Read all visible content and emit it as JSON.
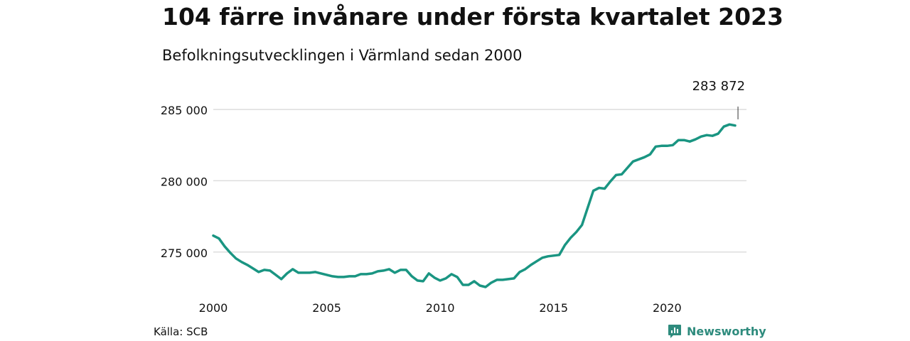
{
  "header": {
    "title": "104 färre invånare under första kvartalet 2023",
    "subtitle": "Befolkningsutvecklingen i Värmland sedan 2000"
  },
  "footer": {
    "source": "Källa: SCB",
    "brand": "Newsworthy",
    "brand_icon": "newsworthy-logo-icon"
  },
  "colors": {
    "line": "#1a9582",
    "grid": "#dddddd",
    "text": "#111111",
    "brand": "#2e8b7d"
  },
  "chart_data": {
    "type": "line",
    "title": "104 färre invånare under första kvartalet 2023",
    "subtitle": "Befolkningsutvecklingen i Värmland sedan 2000",
    "xlabel": "",
    "ylabel": "",
    "x_ticks": [
      "2000",
      "2005",
      "2010",
      "2015",
      "2020"
    ],
    "y_ticks": [
      275000,
      280000,
      285000
    ],
    "y_tick_labels": [
      "275 000",
      "280 000",
      "285 000"
    ],
    "ylim": [
      272000,
      286200
    ],
    "xlim": [
      2000,
      2023.5
    ],
    "grid": "horizontal",
    "legend": "none",
    "annotation": {
      "x": 2023.0,
      "label": "283 872"
    },
    "series": [
      {
        "x": [
          2000.0,
          2000.25,
          2000.5,
          2000.75,
          2001.0,
          2001.25,
          2001.5,
          2001.75,
          2002.0,
          2002.25,
          2002.5,
          2002.75,
          2003.0,
          2003.25,
          2003.5,
          2003.75,
          2004.0,
          2004.25,
          2004.5,
          2004.75,
          2005.0,
          2005.25,
          2005.5,
          2005.75,
          2006.0,
          2006.25,
          2006.5,
          2006.75,
          2007.0,
          2007.25,
          2007.5,
          2007.75,
          2008.0,
          2008.25,
          2008.5,
          2008.75,
          2009.0,
          2009.25,
          2009.5,
          2009.75,
          2010.0,
          2010.25,
          2010.5,
          2010.75,
          2011.0,
          2011.25,
          2011.5,
          2011.75,
          2012.0,
          2012.25,
          2012.5,
          2012.75,
          2013.0,
          2013.25,
          2013.5,
          2013.75,
          2014.0,
          2014.25,
          2014.5,
          2014.75,
          2015.0,
          2015.25,
          2015.5,
          2015.75,
          2016.0,
          2016.25,
          2016.5,
          2016.75,
          2017.0,
          2017.25,
          2017.5,
          2017.75,
          2018.0,
          2018.25,
          2018.5,
          2018.75,
          2019.0,
          2019.25,
          2019.5,
          2019.75,
          2020.0,
          2020.25,
          2020.5,
          2020.75,
          2021.0,
          2021.25,
          2021.5,
          2021.75,
          2022.0,
          2022.25,
          2022.5,
          2022.75,
          2023.0
        ],
        "values": [
          276150,
          275950,
          275400,
          274950,
          274550,
          274300,
          274100,
          273850,
          273600,
          273750,
          273700,
          273400,
          273100,
          273500,
          273800,
          273550,
          273550,
          273550,
          273600,
          273500,
          273400,
          273300,
          273250,
          273250,
          273300,
          273300,
          273450,
          273450,
          273500,
          273650,
          273700,
          273800,
          273550,
          273750,
          273750,
          273300,
          273000,
          272950,
          273500,
          273200,
          273000,
          273150,
          273450,
          273250,
          272700,
          272700,
          272950,
          272650,
          272550,
          272850,
          273050,
          273050,
          273100,
          273150,
          273600,
          273800,
          274100,
          274350,
          274600,
          274700,
          274750,
          274800,
          275500,
          276000,
          276400,
          276900,
          278100,
          279300,
          279500,
          279450,
          279950,
          280400,
          280450,
          280900,
          281350,
          281500,
          281650,
          281850,
          282400,
          282450,
          282450,
          282500,
          282850,
          282850,
          282750,
          282900,
          283100,
          283200,
          283150,
          283300,
          283800,
          283950,
          283872
        ]
      }
    ]
  }
}
